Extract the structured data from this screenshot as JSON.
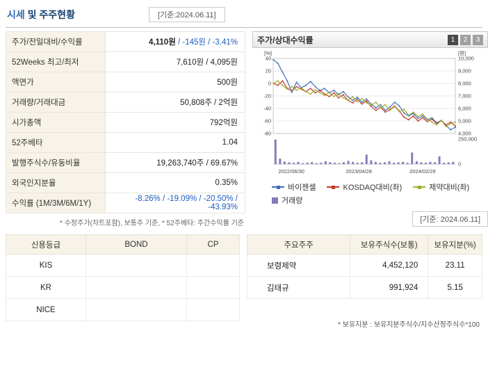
{
  "header": {
    "title_accent": "시세",
    "title_rest": " 및 주주현황",
    "date_note": "[기준:2024.06.11]"
  },
  "quote_table": {
    "rows": [
      {
        "label": "주가/전일대비/수익률",
        "v": "4,110원",
        "vb": " / -145원 / -3.41%"
      },
      {
        "label": "52Weeks 최고/최저",
        "v": "7,610원 / 4,095원",
        "vb": ""
      },
      {
        "label": "액면가",
        "v": "500원",
        "vb": ""
      },
      {
        "label": "거래량/거래대금",
        "v": "50,808주 / 2억원",
        "vb": ""
      },
      {
        "label": "시가총액",
        "v": "792억원",
        "vb": ""
      },
      {
        "label": "52주베타",
        "v": "1.04",
        "vb": ""
      },
      {
        "label": "발행주식수/유동비율",
        "v": "19,263,740주 / 69.67%",
        "vb": ""
      },
      {
        "label": "외국인지분율",
        "v": "0.35%",
        "vb": ""
      },
      {
        "label": "수익률 (1M/3M/6M/1Y)",
        "v": "",
        "vb": "-8.26% / -19.09% / -20.50% / -43.93%"
      }
    ],
    "footnote": "* 수정주가(차트포함), 보통주 기준, * 52주베타: 주간수익률 기준"
  },
  "chart_panel": {
    "title": "주가/상대수익률",
    "buttons": [
      "1",
      "2",
      "3"
    ],
    "date_note": "[기준: 2024.06.11]",
    "legend": [
      {
        "label": "바이젠셀",
        "color": "#3f6fba",
        "type": "line"
      },
      {
        "label": "KOSDAQ대비(좌)",
        "color": "#bf3b2b",
        "type": "line"
      },
      {
        "label": "제약대비(좌)",
        "color": "#9fae2e",
        "type": "line"
      },
      {
        "label": "거래량",
        "color": "#8878b8",
        "type": "bar"
      }
    ]
  },
  "chart_data": {
    "type": "line",
    "title": "주가/상대수익률",
    "left_axis": {
      "label": "[%]",
      "ticks": [
        40,
        20,
        0,
        -20,
        -40,
        -60,
        -80
      ],
      "range": [
        40,
        -80
      ]
    },
    "right_axis": {
      "label": "[원]",
      "ticks": [
        "10,000",
        "9,000",
        "8,000",
        "7,000",
        "6,000",
        "5,000",
        "4,000"
      ]
    },
    "volume_axis": {
      "ticks": [
        "250,000",
        "0"
      ],
      "max": 250000
    },
    "x_ticks": [
      {
        "label": "2022/06/30",
        "pos": 0.1
      },
      {
        "label": "2023/04/28",
        "pos": 0.47
      },
      {
        "label": "2024/02/29",
        "pos": 0.82
      }
    ],
    "series": [
      {
        "name": "바이젠셀",
        "color": "#3f6fba",
        "values": [
          38,
          32,
          18,
          4,
          -14,
          2,
          -7,
          -3,
          3,
          -5,
          -12,
          -8,
          -15,
          -11,
          -18,
          -13,
          -21,
          -27,
          -22,
          -30,
          -25,
          -33,
          -39,
          -34,
          -43,
          -38,
          -30,
          -36,
          -47,
          -52,
          -48,
          -56,
          -52,
          -58,
          -55,
          -63,
          -59,
          -67,
          -74,
          -70
        ]
      },
      {
        "name": "KOSDAQ대비(좌)",
        "color": "#bf3b2b",
        "values": [
          0,
          -3,
          4,
          -8,
          -12,
          -5,
          -9,
          -13,
          -8,
          -15,
          -11,
          -17,
          -21,
          -15,
          -23,
          -18,
          -27,
          -31,
          -25,
          -33,
          -28,
          -37,
          -43,
          -38,
          -46,
          -42,
          -36,
          -44,
          -54,
          -58,
          -52,
          -60,
          -55,
          -61,
          -57,
          -64,
          -60,
          -66,
          -62,
          -68
        ]
      },
      {
        "name": "제약대비(좌)",
        "color": "#9fae2e",
        "values": [
          0,
          4,
          -3,
          -9,
          -5,
          -11,
          -7,
          -13,
          -17,
          -10,
          -15,
          -19,
          -14,
          -21,
          -16,
          -23,
          -27,
          -21,
          -29,
          -24,
          -31,
          -35,
          -30,
          -39,
          -34,
          -43,
          -37,
          -45,
          -41,
          -51,
          -46,
          -53,
          -49,
          -57,
          -62,
          -66,
          -59,
          -69,
          -64,
          -62
        ]
      }
    ],
    "volume": {
      "name": "거래량",
      "color": "#8878b8",
      "values": [
        245000,
        55000,
        25000,
        18000,
        12000,
        22000,
        9000,
        14000,
        19000,
        9000,
        13000,
        28000,
        18000,
        13000,
        9000,
        18000,
        32000,
        22000,
        13000,
        18000,
        95000,
        38000,
        22000,
        13000,
        18000,
        28000,
        13000,
        18000,
        22000,
        13000,
        115000,
        28000,
        18000,
        13000,
        22000,
        18000,
        78000,
        13000,
        18000,
        22000
      ]
    }
  },
  "credit_table": {
    "headers": [
      "신용등급",
      "BOND",
      "CP"
    ],
    "rows": [
      [
        "KIS",
        "",
        ""
      ],
      [
        "KR",
        "",
        ""
      ],
      [
        "NICE",
        "",
        ""
      ]
    ]
  },
  "holders_table": {
    "headers": [
      "주요주주",
      "보유주식수(보통)",
      "보유지분(%)"
    ],
    "rows": [
      [
        "보령제약",
        "4,452,120",
        "23.11"
      ],
      [
        "김태규",
        "991,924",
        "5.15"
      ]
    ],
    "footnote": "* 보유지분 : 보유지분주식수/지수산정주식수*100"
  }
}
